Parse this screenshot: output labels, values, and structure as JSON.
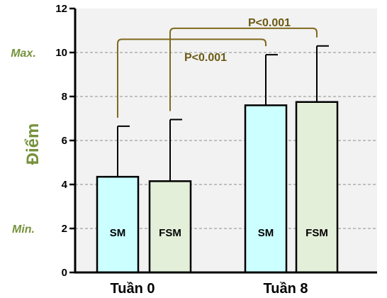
{
  "chart_data": {
    "type": "bar",
    "title": "",
    "xlabel": "",
    "ylabel": "Điểm",
    "ylim": [
      0,
      12
    ],
    "yticks": [
      "0",
      "2",
      "4",
      "6",
      "8",
      "10",
      "12"
    ],
    "grid": true,
    "groups": [
      "Tuần 0",
      "Tuần 8"
    ],
    "bars": [
      {
        "group": "Tuần 0",
        "label": "SM",
        "value": 4.35,
        "error": 2.3,
        "color": "#ccffff"
      },
      {
        "group": "Tuần 0",
        "label": "FSM",
        "value": 4.15,
        "error": 2.8,
        "color": "#e4efd9"
      },
      {
        "group": "Tuần 8",
        "label": "SM",
        "value": 7.6,
        "error": 2.3,
        "color": "#ccffff"
      },
      {
        "group": "Tuần 8",
        "label": "FSM",
        "value": 7.75,
        "error": 2.55,
        "color": "#e4efd9"
      }
    ],
    "reference_labels": [
      {
        "text": "Max.",
        "value": 10
      },
      {
        "text": "Min.",
        "value": 2
      }
    ],
    "significance": [
      {
        "text": "P<0.001",
        "bar_a": 0,
        "bar_b": 2,
        "level": 10.6
      },
      {
        "text": "P<0.001",
        "bar_a": 1,
        "bar_b": 3,
        "level": 11.1
      }
    ],
    "colors": {
      "plot_background": "#f2f2f2",
      "axis": "#000000",
      "bracket": "#7f6a1e",
      "accent_text": "#76923c",
      "sig_text": "#6b5a12"
    }
  }
}
